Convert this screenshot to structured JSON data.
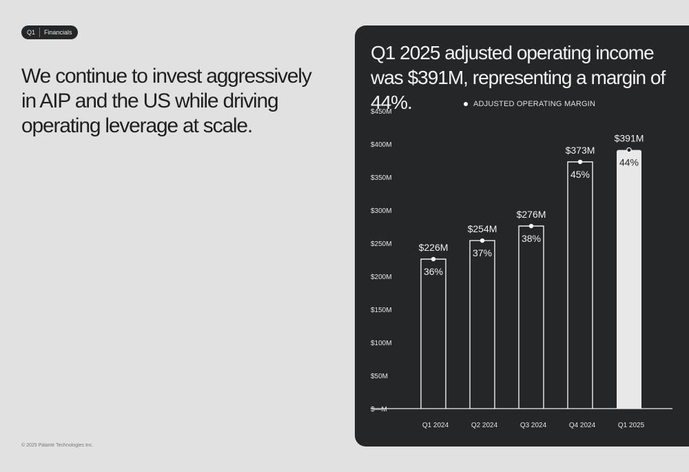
{
  "tag": {
    "quarter": "Q1",
    "section": "Financials"
  },
  "headline": "We continue to invest aggressively in AIP and the US while driving operating leverage at scale.",
  "copyright": "© 2025 Palantir Technologies Inc.",
  "panel": {
    "title": "Q1 2025 adjusted operating income was $391M, representing a margin of 44%."
  },
  "chart_data": {
    "type": "bar",
    "title": "",
    "xlabel": "",
    "ylabel": "",
    "categories": [
      "Q1 2024",
      "Q2 2024",
      "Q3 2024",
      "Q4 2024",
      "Q1 2025"
    ],
    "values": [
      226,
      254,
      276,
      373,
      391
    ],
    "value_labels": [
      "$226M",
      "$254M",
      "$276M",
      "$373M",
      "$391M"
    ],
    "margins": [
      "36%",
      "37%",
      "38%",
      "45%",
      "44%"
    ],
    "legend": [
      "ADJUSTED OPERATING MARGIN"
    ],
    "legend_position": "top-center",
    "ylim": [
      0,
      450
    ],
    "yticks": [
      0,
      50,
      100,
      150,
      200,
      250,
      300,
      350,
      400,
      450
    ],
    "ytick_labels": [
      "$—M",
      "$50M",
      "$100M",
      "$150M",
      "$200M",
      "$250M",
      "$300M",
      "$350M",
      "$400M",
      "$450M"
    ],
    "highlight_index": 4,
    "grid": false,
    "colors": {
      "bar_outline": "#ffffff",
      "highlight_fill": "#e8e8e8",
      "background": "#252627"
    }
  }
}
